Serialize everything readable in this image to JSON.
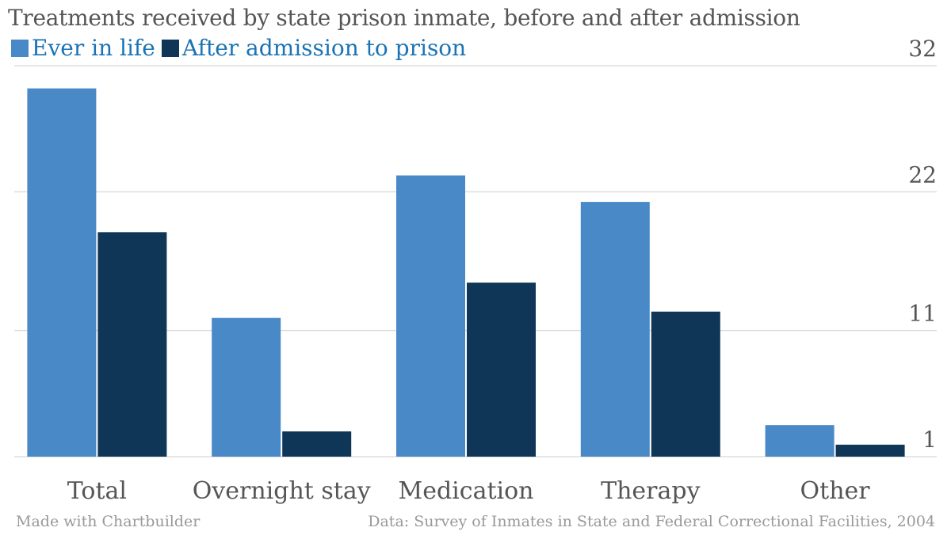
{
  "chart_data": {
    "type": "bar",
    "title": "Treatments received by state prison inmate, before and after admission",
    "categories": [
      "Total",
      "Overnight stay",
      "Medication",
      "Therapy",
      "Other"
    ],
    "series": [
      {
        "name": "Ever in life",
        "color": "#4a89c7",
        "values": [
          30.2,
          12.0,
          23.3,
          21.2,
          3.5
        ]
      },
      {
        "name": "After admission to prison",
        "color": "#0f3657",
        "values": [
          18.8,
          3.0,
          14.8,
          12.5,
          1.95
        ]
      }
    ],
    "ytick_labels": [
      "32",
      "22",
      "11",
      "1"
    ],
    "ylim": [
      1,
      32
    ],
    "grid": true,
    "legend_position": "top-left"
  },
  "legend_text_color": "#1a73b5",
  "footer": {
    "left": "Made with Chartbuilder",
    "right": "Data: Survey of Inmates in State and Federal Correctional Facilities, 2004"
  }
}
